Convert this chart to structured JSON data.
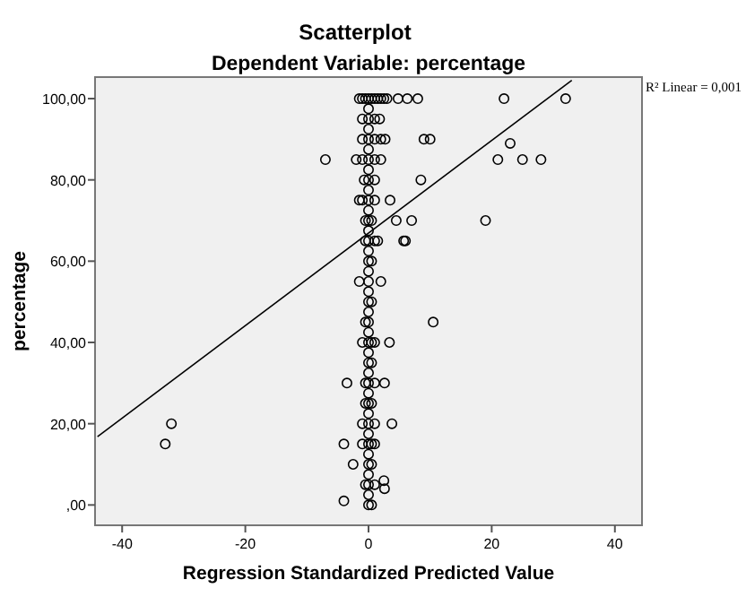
{
  "chart_data": {
    "type": "scatter",
    "title": "Scatterplot",
    "subtitle": "Dependent Variable: percentage",
    "xlabel": "Regression Standardized Predicted Value",
    "ylabel": "percentage",
    "xlim": [
      -44.4,
      44.4
    ],
    "xticks": [
      -40,
      -20,
      0,
      20,
      40
    ],
    "ylim": [
      -5,
      105.3
    ],
    "yticks": [
      {
        "value": 0,
        "label": ",00"
      },
      {
        "value": 20,
        "label": "20,00"
      },
      {
        "value": 40,
        "label": "40,00"
      },
      {
        "value": 60,
        "label": "60,00"
      },
      {
        "value": 80,
        "label": "80,00"
      },
      {
        "value": 100,
        "label": "100,00"
      }
    ],
    "grid": false,
    "annotations": [
      "R² Linear = 0,001"
    ],
    "series": [
      {
        "color": "#000000",
        "marker": "circle",
        "x": [
          -1.5,
          -1,
          -0.5,
          0,
          0.5,
          1,
          1.5,
          2,
          2.5,
          3,
          -1,
          0,
          1,
          1.8,
          -1,
          0,
          1,
          2,
          -2,
          -1,
          0,
          1,
          2,
          -0.7,
          0,
          1,
          -1.5,
          -1,
          0,
          1,
          -0.5,
          0,
          0.5,
          -0.5,
          0,
          1,
          1.5,
          0,
          0.5,
          0,
          0,
          0.5,
          -0.5,
          0,
          -1,
          0,
          0.5,
          1,
          0,
          0.5,
          -0.5,
          0,
          1,
          -0.5,
          0,
          0.5,
          -1,
          0,
          1,
          -1,
          0,
          0.5,
          1,
          0,
          0.5,
          -0.5,
          0,
          1,
          0,
          0.5,
          0,
          0,
          0,
          0,
          0,
          0,
          0,
          0,
          0,
          0,
          0,
          0,
          0,
          0,
          0,
          0,
          0,
          0,
          0,
          0,
          -7,
          -32,
          -33,
          -4,
          -3.5,
          2.6,
          -4,
          -2.5,
          2.6,
          2.5,
          3.8,
          3.4,
          2,
          -1.5,
          8.5,
          3.5,
          4.5,
          7,
          6,
          5.7,
          9,
          10,
          4.8,
          6.3,
          8,
          22,
          32,
          23,
          21,
          25,
          28,
          19,
          10.5,
          2.7
        ],
        "values": [
          100,
          100,
          100,
          100,
          100,
          100,
          100,
          100,
          100,
          100,
          95,
          95,
          95,
          95,
          90,
          90,
          90,
          90,
          85,
          85,
          85,
          85,
          85,
          80,
          80,
          80,
          75,
          75,
          75,
          75,
          70,
          70,
          70,
          65,
          65,
          65,
          65,
          60,
          60,
          55,
          50,
          50,
          45,
          45,
          40,
          40,
          40,
          40,
          35,
          35,
          30,
          30,
          30,
          25,
          25,
          25,
          20,
          20,
          20,
          15,
          15,
          15,
          15,
          10,
          10,
          5,
          5,
          5,
          0,
          0,
          2.5,
          7.5,
          12.5,
          17.5,
          22.5,
          27.5,
          32.5,
          37.5,
          42.5,
          47.5,
          52.5,
          57.5,
          62.5,
          67.5,
          72.5,
          77.5,
          82.5,
          87.5,
          92.5,
          97.5,
          85,
          20,
          15,
          1,
          30,
          30,
          15,
          10,
          4,
          6,
          20,
          40,
          55,
          55,
          80,
          75,
          70,
          70,
          65,
          65,
          90,
          90,
          100,
          100,
          100,
          100,
          100,
          89,
          85,
          85,
          85,
          70,
          45,
          90
        ]
      },
      {
        "type": "line",
        "color": "#000000",
        "marker": "none",
        "x": [
          -44,
          33
        ],
        "values": [
          16.8,
          104.5
        ]
      }
    ]
  }
}
